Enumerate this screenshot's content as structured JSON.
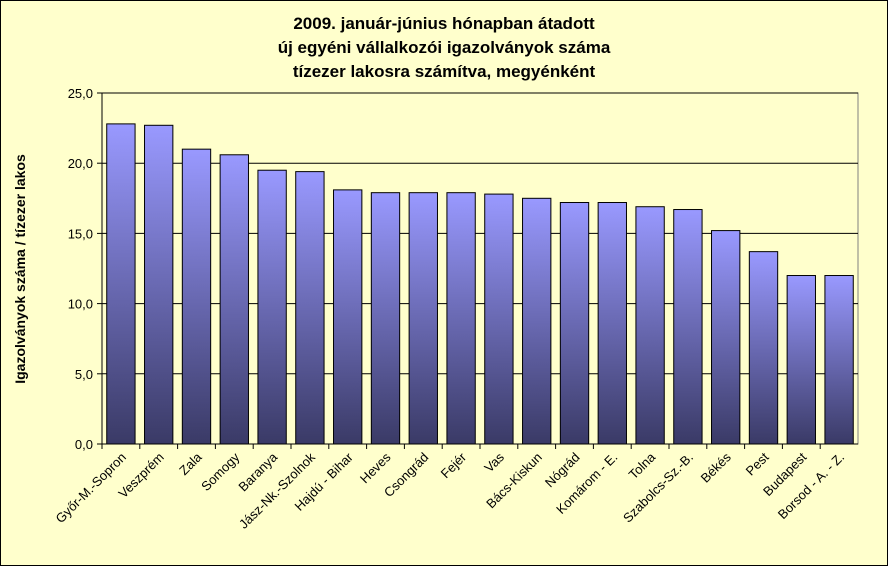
{
  "chart_data": {
    "type": "bar",
    "title": [
      "2009. január-június hónapban átadott",
      "új egyéni vállalkozói  igazolványok száma",
      "tízezer lakosra számítva, megyénként"
    ],
    "xlabel": "",
    "ylabel": "Igazolványok száma / tízezer lakos",
    "ylim": [
      0,
      25
    ],
    "yticks": [
      0,
      5,
      10,
      15,
      20,
      25
    ],
    "ytick_labels": [
      "0,0",
      "5,0",
      "10,0",
      "15,0",
      "20,0",
      "25,0"
    ],
    "grid": true,
    "legend": "none",
    "categories": [
      "Győr-M.-Sopron",
      "Veszprém",
      "Zala",
      "Somogy",
      "Baranya",
      "Jász-Nk.-Szolnok",
      "Hajdú - Bihar",
      "Heves",
      "Csongrád",
      "Fejér",
      "Vas",
      "Bács-Kiskun",
      "Nógrád",
      "Komárom - E.",
      "Tolna",
      "Szabolcs-Sz.-B.",
      "Békés",
      "Pest",
      "Budapest",
      "Borsod - A. - Z."
    ],
    "values": [
      22.8,
      22.7,
      21.0,
      20.6,
      19.5,
      19.4,
      18.1,
      17.9,
      17.9,
      17.9,
      17.8,
      17.5,
      17.2,
      17.2,
      16.9,
      16.7,
      15.2,
      13.7,
      12.0,
      12.0
    ],
    "colors": {
      "background": "#ffffcc",
      "plot_area": "#ffffcc",
      "gridline": "#000000",
      "bar_top": "#9999ff",
      "bar_bottom": "#3a3a66",
      "bar_border": "#000000",
      "highlight_label": "#8080c0"
    },
    "highlight_category": "Győr-M.-Sopron"
  }
}
